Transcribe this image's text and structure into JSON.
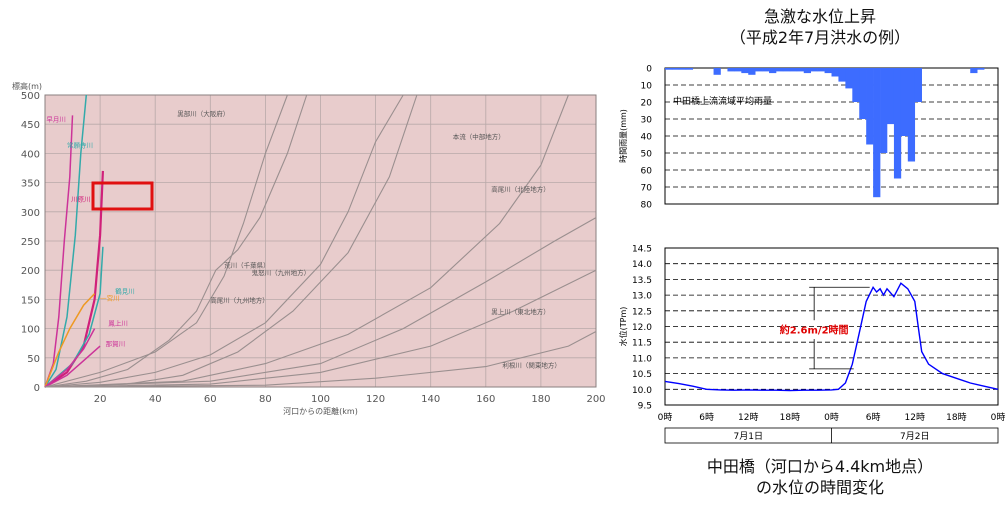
{
  "right_title": [
    "急激な水位上昇",
    "（平成2年7月洪水の例）"
  ],
  "right_caption": [
    "中田橋（河口から4.4km地点）",
    "の水位の時間変化"
  ],
  "colors": {
    "pink_bg": "#e8cccc",
    "grid": "#b8a9a9",
    "river_grey": "#9a8f8f",
    "blue": "#0000ff",
    "rain_fill": "#3d6cff",
    "highlight": "#e01010",
    "annotation": "#e00000"
  },
  "chart_data": [
    {
      "type": "line",
      "xlabel": "河口からの距離(km)",
      "ylabel": "標高(m)",
      "xlim": [
        0,
        200
      ],
      "ylim": [
        0,
        500
      ],
      "x_ticks": [
        20,
        40,
        60,
        80,
        100,
        120,
        140,
        160,
        180,
        200
      ],
      "y_ticks": [
        0,
        50,
        100,
        150,
        200,
        250,
        300,
        350,
        400,
        450,
        500
      ],
      "highlight_label": "川原川",
      "series": [
        {
          "name": "早月川",
          "color": "#cc3399",
          "points": [
            [
              0,
              0
            ],
            [
              3,
              40
            ],
            [
              5,
              120
            ],
            [
              7,
              250
            ],
            [
              9,
              360
            ],
            [
              10,
              465
            ]
          ]
        },
        {
          "name": "常願寺川",
          "color": "#33aaaa",
          "points": [
            [
              0,
              0
            ],
            [
              4,
              30
            ],
            [
              8,
              120
            ],
            [
              11,
              260
            ],
            [
              13,
              400
            ],
            [
              15,
              500
            ]
          ]
        },
        {
          "name": "川原川",
          "color": "#d0207a",
          "points": [
            [
              0,
              0
            ],
            [
              8,
              25
            ],
            [
              14,
              70
            ],
            [
              18,
              150
            ],
            [
              20,
              260
            ],
            [
              21,
              370
            ]
          ]
        },
        {
          "name": "鶴見川",
          "color": "#33aaaa",
          "points": [
            [
              0,
              0
            ],
            [
              10,
              40
            ],
            [
              16,
              90
            ],
            [
              20,
              160
            ],
            [
              21,
              240
            ]
          ]
        },
        {
          "name": "一宮川",
          "color": "#ee9922",
          "points": [
            [
              0,
              0
            ],
            [
              5,
              60
            ],
            [
              9,
              100
            ],
            [
              14,
              140
            ],
            [
              18,
              160
            ]
          ]
        },
        {
          "name": "鳳上川",
          "color": "#cc3399",
          "points": [
            [
              0,
              0
            ],
            [
              8,
              30
            ],
            [
              14,
              65
            ],
            [
              18,
              100
            ]
          ]
        },
        {
          "name": "那賀川",
          "color": "#cc3399",
          "points": [
            [
              0,
              0
            ],
            [
              8,
              20
            ],
            [
              14,
              45
            ],
            [
              20,
              70
            ]
          ]
        },
        {
          "name": "黒部川（大阪府）",
          "color": "#9a8f8f",
          "points": [
            [
              0,
              0
            ],
            [
              20,
              25
            ],
            [
              40,
              60
            ],
            [
              55,
              110
            ],
            [
              65,
              190
            ],
            [
              72,
              280
            ],
            [
              80,
              400
            ],
            [
              88,
              500
            ]
          ]
        },
        {
          "name": "荒川（千葉県）",
          "color": "#9a8f8f",
          "points": [
            [
              0,
              0
            ],
            [
              15,
              10
            ],
            [
              30,
              30
            ],
            [
              45,
              80
            ],
            [
              55,
              130
            ],
            [
              62,
              200
            ],
            [
              70,
              235
            ],
            [
              78,
              290
            ],
            [
              88,
              400
            ],
            [
              95,
              500
            ]
          ]
        },
        {
          "name": "鬼怒川（九州地方）",
          "color": "#9a8f8f",
          "points": [
            [
              0,
              0
            ],
            [
              20,
              8
            ],
            [
              40,
              25
            ],
            [
              60,
              55
            ],
            [
              80,
              110
            ],
            [
              100,
              210
            ],
            [
              110,
              300
            ],
            [
              120,
              420
            ],
            [
              130,
              500
            ]
          ]
        },
        {
          "name": "高尾川（九州地方）",
          "color": "#9a8f8f",
          "points": [
            [
              0,
              0
            ],
            [
              30,
              5
            ],
            [
              50,
              20
            ],
            [
              70,
              60
            ],
            [
              90,
              130
            ],
            [
              110,
              230
            ],
            [
              125,
              360
            ],
            [
              135,
              500
            ]
          ]
        },
        {
          "name": "本流（中部地方）",
          "color": "#9a8f8f",
          "points": [
            [
              0,
              0
            ],
            [
              50,
              10
            ],
            [
              80,
              40
            ],
            [
              110,
              90
            ],
            [
              140,
              170
            ],
            [
              165,
              280
            ],
            [
              180,
              380
            ],
            [
              190,
              500
            ]
          ]
        },
        {
          "name": "高尾川（北陸地方）",
          "color": "#9a8f8f",
          "points": [
            [
              0,
              0
            ],
            [
              60,
              10
            ],
            [
              100,
              40
            ],
            [
              130,
              100
            ],
            [
              160,
              180
            ],
            [
              185,
              250
            ],
            [
              200,
              290
            ]
          ]
        },
        {
          "name": "黒上川（東北地方）",
          "color": "#9a8f8f",
          "points": [
            [
              0,
              0
            ],
            [
              60,
              5
            ],
            [
              100,
              25
            ],
            [
              140,
              70
            ],
            [
              170,
              130
            ],
            [
              200,
              200
            ]
          ]
        },
        {
          "name": "利根川（関東地方）",
          "color": "#9a8f8f",
          "points": [
            [
              0,
              0
            ],
            [
              80,
              3
            ],
            [
              120,
              15
            ],
            [
              160,
              35
            ],
            [
              190,
              70
            ],
            [
              200,
              95
            ]
          ]
        }
      ]
    },
    {
      "type": "bar",
      "title": "中田橋上流流域平均雨量",
      "ylabel": "時間雨量(mm)",
      "ylim": [
        0,
        80
      ],
      "y_inverted": true,
      "y_ticks": [
        0,
        10,
        20,
        30,
        40,
        50,
        60,
        70,
        80
      ],
      "hours_start": 0,
      "values": [
        1,
        1,
        1,
        1,
        0,
        0,
        0,
        4,
        0,
        2,
        2,
        3,
        4,
        2,
        2,
        3,
        2,
        2,
        2,
        2,
        3,
        2,
        2,
        3,
        5,
        8,
        12,
        20,
        30,
        45,
        76,
        50,
        33,
        65,
        40,
        55,
        20,
        0,
        0,
        0,
        0,
        0,
        0,
        0,
        3,
        1,
        0,
        0
      ]
    },
    {
      "type": "line",
      "ylabel": "水位(TPm)",
      "ylim": [
        9.5,
        14.5
      ],
      "y_ticks": [
        9.5,
        10.0,
        10.5,
        11.0,
        11.5,
        12.0,
        12.5,
        13.0,
        13.5,
        14.0,
        14.5
      ],
      "x_tick_labels": [
        "0時",
        "6時",
        "12時",
        "18時",
        "0時",
        "6時",
        "12時",
        "18時",
        "0時"
      ],
      "x_ticks_hours": [
        0,
        6,
        12,
        18,
        24,
        30,
        36,
        42,
        48
      ],
      "date_labels": [
        "7月1日",
        "7月2日"
      ],
      "annotation": "約2.6m/2時間",
      "series": [
        {
          "name": "",
          "color": "#0000ff",
          "points": [
            [
              0,
              10.25
            ],
            [
              2,
              10.18
            ],
            [
              4,
              10.1
            ],
            [
              6,
              10.0
            ],
            [
              8,
              9.98
            ],
            [
              10,
              9.97
            ],
            [
              12,
              9.98
            ],
            [
              14,
              9.97
            ],
            [
              16,
              9.97
            ],
            [
              18,
              9.96
            ],
            [
              20,
              9.97
            ],
            [
              22,
              9.97
            ],
            [
              24,
              9.98
            ],
            [
              25,
              10.0
            ],
            [
              26,
              10.2
            ],
            [
              27,
              10.8
            ],
            [
              28,
              11.8
            ],
            [
              29,
              12.8
            ],
            [
              30,
              13.25
            ],
            [
              30.5,
              13.1
            ],
            [
              31,
              13.2
            ],
            [
              31.5,
              13.0
            ],
            [
              32,
              13.2
            ],
            [
              33,
              12.95
            ],
            [
              34,
              13.38
            ],
            [
              35,
              13.2
            ],
            [
              36,
              12.8
            ],
            [
              36.5,
              12.0
            ],
            [
              37,
              11.2
            ],
            [
              38,
              10.8
            ],
            [
              40,
              10.5
            ],
            [
              42,
              10.35
            ],
            [
              44,
              10.2
            ],
            [
              46,
              10.1
            ],
            [
              48,
              10.0
            ]
          ]
        }
      ]
    }
  ]
}
